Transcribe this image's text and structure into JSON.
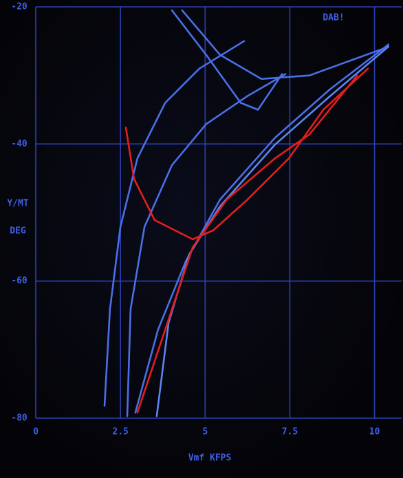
{
  "chart_data": {
    "type": "line",
    "annotation": "DAB!",
    "ylabel": [
      "Y/MT",
      "DEG"
    ],
    "xlabel": "Vmf KFPS",
    "xlim": [
      0,
      10.8
    ],
    "ylim": [
      -80,
      -20
    ],
    "xticks": [
      0,
      2.5,
      5,
      7.5,
      10
    ],
    "yticks": [
      -20,
      -40,
      -60,
      -80
    ],
    "grid": true,
    "series": [
      {
        "color": "#4a6fe8",
        "x": [
          2.03,
          2.19,
          2.5,
          3.0,
          3.82,
          4.83,
          6.15
        ],
        "values": [
          -78.2,
          -64.1,
          -52.1,
          -42.1,
          -34.0,
          -29.0,
          -25.0
        ]
      },
      {
        "color": "#4a6fe8",
        "x": [
          2.7,
          2.8,
          3.21,
          4.02,
          5.03,
          6.25,
          7.37
        ],
        "values": [
          -79.7,
          -64.1,
          -52.1,
          -43.1,
          -37.1,
          -33.0,
          -29.8
        ]
      },
      {
        "color": "#4a6fe8",
        "x": [
          2.94,
          3.61,
          4.43,
          5.44,
          7.06,
          8.69,
          10.41
        ],
        "values": [
          -79.2,
          -67.1,
          -57.1,
          -48.1,
          -39.1,
          -32.0,
          -25.5
        ]
      },
      {
        "color": "#5a86f0",
        "x": [
          3.57,
          3.92,
          4.53,
          5.44,
          7.06,
          8.69,
          10.41
        ],
        "values": [
          -79.7,
          -66.1,
          -56.1,
          -49.1,
          -40.1,
          -33.0,
          -25.8
        ]
      },
      {
        "color": "#4a6fe8",
        "x": [
          4.02,
          5.03,
          6.05,
          6.56,
          7.27
        ],
        "values": [
          -20.5,
          -27.0,
          -34.0,
          -35.0,
          -29.8
        ]
      },
      {
        "color": "#4a6fe8",
        "x": [
          4.32,
          5.44,
          6.66,
          8.08,
          10.31
        ],
        "values": [
          -20.5,
          -27.0,
          -30.5,
          -30.0,
          -26.0
        ]
      },
      {
        "color": "#e51e1e",
        "x": [
          2.66,
          2.9,
          3.51,
          4.63,
          5.24,
          6.25,
          7.47,
          8.49,
          9.81
        ],
        "values": [
          -37.6,
          -45.1,
          -51.1,
          -53.9,
          -52.6,
          -48.1,
          -42.1,
          -35.0,
          -29.0
        ]
      },
      {
        "color": "#e51e1e",
        "x": [
          3.0,
          3.82,
          4.63,
          5.64,
          7.06,
          8.08,
          9.49
        ],
        "values": [
          -79.2,
          -67.1,
          -55.1,
          -48.1,
          -42.1,
          -38.6,
          -30.0
        ]
      }
    ]
  }
}
